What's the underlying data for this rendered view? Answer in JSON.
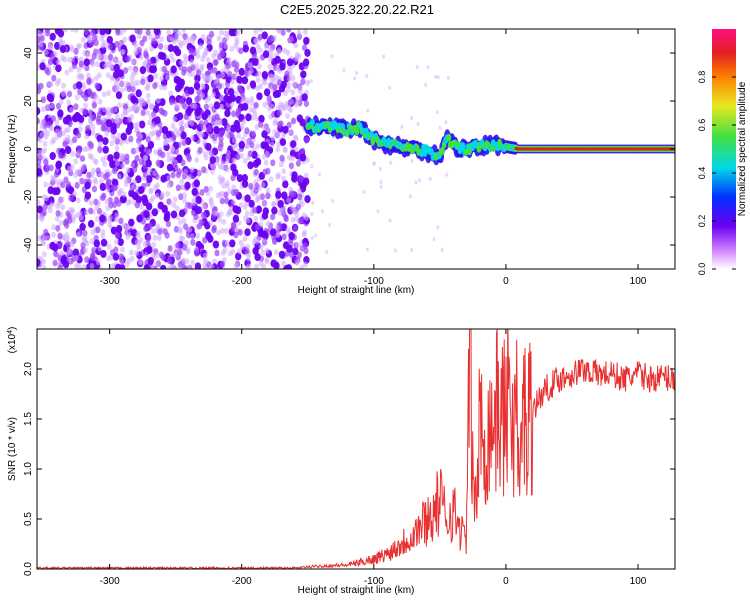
{
  "figure_title": "C2E5.2025.322.20.22.R21",
  "colors": {
    "snr_line": "#e83030",
    "axis": "#000000",
    "scatter_purple": "#6a00f0",
    "band_cyan": "#00d8e8",
    "band_green": "#40e040",
    "band_red": "#e02020"
  },
  "chart_data": [
    {
      "type": "heatmap",
      "title": "C2E5.2025.322.20.22.R21",
      "xlabel": "Height of straight line (km)",
      "ylabel": "Frequency (Hz)",
      "xlim": [
        -355,
        128
      ],
      "ylim": [
        -50,
        50
      ],
      "xticks": [
        -300,
        -200,
        -100,
        0,
        100
      ],
      "yticks": [
        -40,
        -20,
        0,
        20,
        40
      ],
      "xtick_labels": [
        "-300",
        "-200",
        "-100",
        "0",
        "100"
      ],
      "ytick_labels": [
        "-40",
        "-20",
        "0",
        "20",
        "40"
      ],
      "noise_region_x": [
        -355,
        -150
      ],
      "ridge": {
        "x": [
          -150,
          -140,
          -130,
          -120,
          -110,
          -100,
          -90,
          -80,
          -70,
          -60,
          -50,
          -45,
          -40,
          -35,
          -30,
          -25,
          -20,
          -10,
          0,
          10,
          50,
          100,
          128
        ],
        "y": [
          10,
          9,
          9,
          8,
          9,
          4,
          2,
          1,
          0,
          -1,
          -3,
          5,
          2,
          0,
          0,
          1,
          1,
          2,
          1,
          0,
          0,
          0,
          0
        ]
      },
      "colorbar": {
        "label": "Normalized spectral amplitude",
        "range": [
          0.0,
          1.0
        ],
        "ticks": [
          0.0,
          0.2,
          0.4,
          0.6,
          0.8
        ],
        "tick_labels": [
          "0.0",
          "0.2",
          "0.4",
          "0.6",
          "0.8"
        ]
      }
    },
    {
      "type": "line",
      "xlabel": "Height of straight line (km)",
      "ylabel": "SNR (10 * v/v)",
      "scale_label": "(x10",
      "scale_exponent": "4",
      "scale_close": ")",
      "xlim": [
        -355,
        128
      ],
      "ylim": [
        0,
        2.4
      ],
      "xticks": [
        -300,
        -200,
        -100,
        0,
        100
      ],
      "yticks": [
        0.0,
        0.5,
        1.0,
        1.5,
        2.0
      ],
      "xtick_labels": [
        "-300",
        "-200",
        "-100",
        "0",
        "100"
      ],
      "ytick_labels": [
        "0.0",
        "0.5",
        "1.0",
        "1.5",
        "2.0"
      ],
      "series": [
        {
          "name": "SNR",
          "x": [
            -355,
            -300,
            -250,
            -200,
            -160,
            -140,
            -120,
            -110,
            -100,
            -90,
            -80,
            -70,
            -60,
            -55,
            -50,
            -45,
            -40,
            -35,
            -30,
            -27,
            -25,
            -22,
            -20,
            -15,
            -10,
            -5,
            0,
            3,
            5,
            8,
            10,
            13,
            15,
            20,
            25,
            30,
            35,
            40,
            50,
            60,
            70,
            80,
            90,
            100,
            110,
            120,
            128
          ],
          "values": [
            0.01,
            0.01,
            0.01,
            0.01,
            0.01,
            0.03,
            0.04,
            0.07,
            0.1,
            0.15,
            0.25,
            0.35,
            0.5,
            0.55,
            0.7,
            0.5,
            0.6,
            0.4,
            0.3,
            2.3,
            0.8,
            0.7,
            1.4,
            1.3,
            1.5,
            1.6,
            1.5,
            2.2,
            1.3,
            1.8,
            0.7,
            1.6,
            1.5,
            1.6,
            1.7,
            1.8,
            1.85,
            1.9,
            1.95,
            2.0,
            1.95,
            1.95,
            1.9,
            1.95,
            1.9,
            1.92,
            1.9
          ]
        }
      ]
    }
  ]
}
